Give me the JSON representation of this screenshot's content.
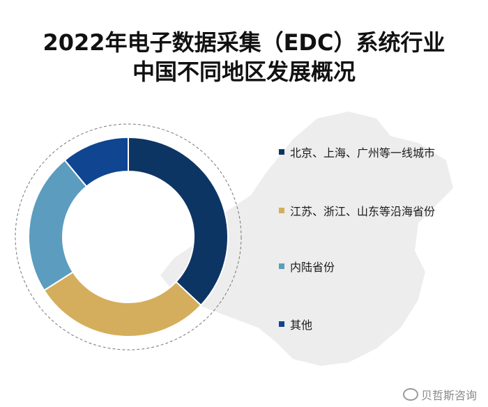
{
  "title_lines": [
    "2022年电子数据采集（EDC）系统行业",
    "中国不同地区发展概况"
  ],
  "watermark": "贝哲斯咨询",
  "colors": {
    "dark_navy": "#0d3564",
    "gold": "#d4ae5c",
    "steel_blue": "#5c9cbf",
    "royal_blue": "#0f4591",
    "map_gray": "#ededed"
  },
  "chart_data": {
    "type": "pie",
    "donut": true,
    "categories": [
      "北京、上海、广州等一线城市",
      "江苏、浙江、山东等沿海省份",
      "内陆省份",
      "其他"
    ],
    "values": [
      37,
      29,
      23,
      11
    ],
    "legend_position": "right"
  }
}
